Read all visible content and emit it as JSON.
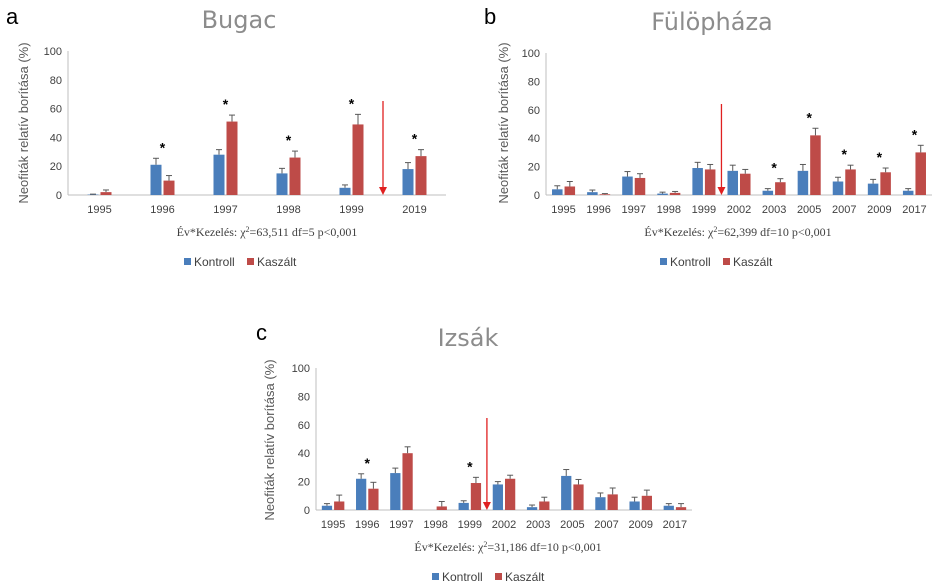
{
  "colors": {
    "kontroll": "#4a7ebb",
    "kaszalt": "#be4b48",
    "arrow": "#e02020",
    "axis": "#bfbfbf",
    "error": "#595959"
  },
  "chart_data": [
    {
      "type": "bar",
      "panel_letter": "a",
      "title": "Bugac",
      "ylabel": "Neofiták relatív borítása (%)",
      "xlabel": "",
      "ylim": [
        0,
        100
      ],
      "yticks": [
        "0",
        "20",
        "40",
        "60",
        "80",
        "100"
      ],
      "categories": [
        "1995",
        "1996",
        "1997",
        "1998",
        "1999",
        "2019"
      ],
      "series": [
        {
          "name": "Kontroll",
          "values": [
            0.3,
            21,
            28,
            15,
            5,
            18
          ],
          "errors": [
            0.3,
            4.5,
            3.5,
            3.5,
            2,
            4.5
          ]
        },
        {
          "name": "Kaszált",
          "values": [
            2,
            10,
            51,
            26,
            49,
            27
          ],
          "errors": [
            1.5,
            3.5,
            4.5,
            4.5,
            7,
            4.5
          ]
        }
      ],
      "significant": [
        false,
        true,
        true,
        true,
        true,
        true
      ],
      "star_label": "*",
      "arrow_between": [
        4,
        5
      ],
      "stat_prefix": "Év*Kezelés: χ",
      "stat_sup": "2",
      "stat_suffix": "=63,511 df=5 p<0,001",
      "legend": [
        "Kontroll",
        "Kaszált"
      ]
    },
    {
      "type": "bar",
      "panel_letter": "b",
      "title": "Fülöpháza",
      "ylabel": "Neofiták relatív borítása (%)",
      "xlabel": "",
      "ylim": [
        0,
        100
      ],
      "yticks": [
        "0",
        "20",
        "40",
        "60",
        "80",
        "100"
      ],
      "categories": [
        "1995",
        "1996",
        "1997",
        "1998",
        "1999",
        "2002",
        "2003",
        "2005",
        "2007",
        "2009",
        "2017"
      ],
      "series": [
        {
          "name": "Kontroll",
          "values": [
            4,
            2,
            13,
            1,
            19,
            17,
            3,
            17,
            9.5,
            8,
            3
          ],
          "errors": [
            2.5,
            1.5,
            3.5,
            1,
            4,
            4,
            1.5,
            4.5,
            3,
            3,
            1.5
          ]
        },
        {
          "name": "Kaszált",
          "values": [
            6,
            0.5,
            12,
            1.5,
            18,
            15,
            9,
            42,
            18,
            16,
            30
          ],
          "errors": [
            3.5,
            0.5,
            3,
            1,
            3.5,
            3,
            2.5,
            5,
            3,
            3,
            5
          ]
        }
      ],
      "significant": [
        false,
        false,
        false,
        false,
        false,
        false,
        true,
        true,
        true,
        true,
        true
      ],
      "star_label": "*",
      "arrow_between": [
        4,
        5
      ],
      "stat_prefix": "Év*Kezelés: χ",
      "stat_sup": "2",
      "stat_suffix": "=62,399 df=10 p<0,001",
      "legend": [
        "Kontroll",
        "Kaszált"
      ]
    },
    {
      "type": "bar",
      "panel_letter": "c",
      "title": "Izsák",
      "ylabel": "Neofiták relatív borítása (%)",
      "xlabel": "",
      "ylim": [
        0,
        100
      ],
      "yticks": [
        "0",
        "20",
        "40",
        "60",
        "80",
        "100"
      ],
      "categories": [
        "1995",
        "1996",
        "1997",
        "1998",
        "1999",
        "2002",
        "2003",
        "2005",
        "2007",
        "2009",
        "2017"
      ],
      "series": [
        {
          "name": "Kontroll",
          "values": [
            3,
            22,
            26,
            0,
            5,
            18,
            2,
            24,
            9,
            6,
            3
          ],
          "errors": [
            1.5,
            3.5,
            3.5,
            0,
            1.5,
            2,
            1.5,
            4.5,
            3,
            3,
            1.5
          ]
        },
        {
          "name": "Kaszált",
          "values": [
            6,
            15,
            40,
            2.5,
            19,
            22,
            6,
            18,
            11,
            10,
            2
          ],
          "errors": [
            4.5,
            4.5,
            4.5,
            3.5,
            4,
            2.5,
            3,
            3.5,
            4.5,
            4,
            2.5
          ]
        }
      ],
      "significant": [
        false,
        true,
        false,
        false,
        true,
        false,
        false,
        false,
        false,
        false,
        false
      ],
      "star_label": "*",
      "arrow_between": [
        4,
        5
      ],
      "stat_prefix": "Év*Kezelés: χ",
      "stat_sup": "2",
      "stat_suffix": "=31,186 df=10 p<0,001",
      "legend": [
        "Kontroll",
        "Kaszált"
      ]
    }
  ]
}
